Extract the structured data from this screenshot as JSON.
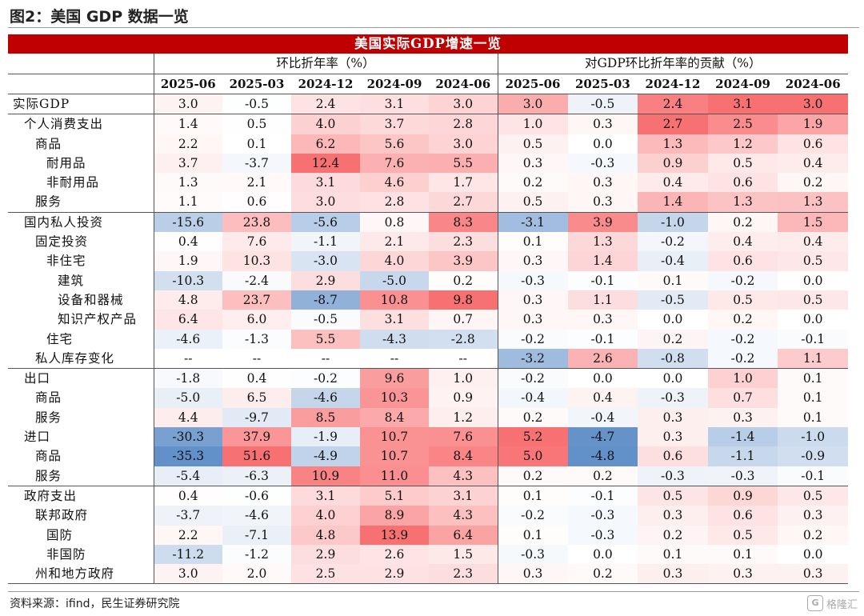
{
  "figure_title": "图2：美国 GDP 数据一览",
  "table": {
    "title": "美国实际GDP增速一览",
    "group_left": "环比折年率（%）",
    "group_right": "对GDP环比折年率的贡献（%）",
    "dates_left": [
      "2025-06",
      "2025-03",
      "2024-12",
      "2024-09",
      "2024-06"
    ],
    "dates_right": [
      "2025-06",
      "2025-03",
      "2024-12",
      "2024-09",
      "2024-06"
    ],
    "rows": [
      {
        "label": "实际GDP",
        "indent": 0,
        "sec": false,
        "growth": [
          "3.0",
          "-0.5",
          "2.4",
          "3.1",
          "3.0"
        ],
        "contrib": [
          "3.0",
          "-0.5",
          "2.4",
          "3.1",
          "3.0"
        ]
      },
      {
        "label": "个人消费支出",
        "indent": 1,
        "sec": true,
        "growth": [
          "1.4",
          "0.5",
          "4.0",
          "3.7",
          "2.8"
        ],
        "contrib": [
          "1.0",
          "0.3",
          "2.7",
          "2.5",
          "1.9"
        ]
      },
      {
        "label": "商品",
        "indent": 2,
        "sec": false,
        "growth": [
          "2.2",
          "0.1",
          "6.2",
          "5.6",
          "3.0"
        ],
        "contrib": [
          "0.5",
          "0.0",
          "1.3",
          "1.2",
          "0.6"
        ]
      },
      {
        "label": "耐用品",
        "indent": 3,
        "sec": false,
        "growth": [
          "3.7",
          "-3.7",
          "12.4",
          "7.6",
          "5.5"
        ],
        "contrib": [
          "0.3",
          "-0.3",
          "0.9",
          "0.5",
          "0.4"
        ]
      },
      {
        "label": "非耐用品",
        "indent": 3,
        "sec": false,
        "growth": [
          "1.3",
          "2.1",
          "3.1",
          "4.6",
          "1.7"
        ],
        "contrib": [
          "0.2",
          "0.3",
          "0.4",
          "0.6",
          "0.2"
        ]
      },
      {
        "label": "服务",
        "indent": 2,
        "sec": false,
        "growth": [
          "1.1",
          "0.6",
          "3.0",
          "2.8",
          "2.7"
        ],
        "contrib": [
          "0.5",
          "0.3",
          "1.4",
          "1.3",
          "1.3"
        ]
      },
      {
        "label": "国内私人投资",
        "indent": 1,
        "sec": true,
        "growth": [
          "-15.6",
          "23.8",
          "-5.6",
          "0.8",
          "8.3"
        ],
        "contrib": [
          "-3.1",
          "3.9",
          "-1.0",
          "0.2",
          "1.5"
        ]
      },
      {
        "label": "固定投资",
        "indent": 2,
        "sec": false,
        "growth": [
          "0.4",
          "7.6",
          "-1.1",
          "2.1",
          "2.3"
        ],
        "contrib": [
          "0.1",
          "1.3",
          "-0.2",
          "0.4",
          "0.4"
        ]
      },
      {
        "label": "非住宅",
        "indent": 3,
        "sec": false,
        "growth": [
          "1.9",
          "10.3",
          "-3.0",
          "4.0",
          "3.9"
        ],
        "contrib": [
          "0.3",
          "1.4",
          "-0.4",
          "0.6",
          "0.5"
        ]
      },
      {
        "label": "建筑",
        "indent": 4,
        "sec": false,
        "growth": [
          "-10.3",
          "-2.4",
          "2.9",
          "-5.0",
          "0.2"
        ],
        "contrib": [
          "-0.3",
          "-0.1",
          "0.1",
          "-0.2",
          "0.0"
        ]
      },
      {
        "label": "设备和器械",
        "indent": 4,
        "sec": false,
        "growth": [
          "4.8",
          "23.7",
          "-8.7",
          "10.8",
          "9.8"
        ],
        "contrib": [
          "0.3",
          "1.1",
          "-0.5",
          "0.5",
          "0.5"
        ]
      },
      {
        "label": "知识产权产品",
        "indent": 4,
        "sec": false,
        "growth": [
          "6.4",
          "6.0",
          "-0.5",
          "3.1",
          "0.7"
        ],
        "contrib": [
          "0.3",
          "0.3",
          "0.0",
          "0.2",
          "0.0"
        ]
      },
      {
        "label": "住宅",
        "indent": 3,
        "sec": false,
        "growth": [
          "-4.6",
          "-1.3",
          "5.5",
          "-4.3",
          "-2.8"
        ],
        "contrib": [
          "-0.2",
          "-0.1",
          "0.2",
          "-0.2",
          "-0.1"
        ]
      },
      {
        "label": "私人库存变化",
        "indent": 2,
        "sec": false,
        "growth": [
          "--",
          "--",
          "--",
          "--",
          "--"
        ],
        "contrib": [
          "-3.2",
          "2.6",
          "-0.8",
          "-0.2",
          "1.1"
        ]
      },
      {
        "label": "出口",
        "indent": 1,
        "sec": true,
        "growth": [
          "-1.8",
          "0.4",
          "-0.2",
          "9.6",
          "1.0"
        ],
        "contrib": [
          "-0.2",
          "0.0",
          "0.0",
          "1.0",
          "0.1"
        ]
      },
      {
        "label": "商品",
        "indent": 2,
        "sec": false,
        "growth": [
          "-5.0",
          "6.5",
          "-4.6",
          "10.3",
          "0.9"
        ],
        "contrib": [
          "-0.4",
          "0.4",
          "-0.3",
          "0.7",
          "0.1"
        ]
      },
      {
        "label": "服务",
        "indent": 2,
        "sec": false,
        "growth": [
          "4.4",
          "-9.7",
          "8.5",
          "8.4",
          "1.2"
        ],
        "contrib": [
          "0.2",
          "-0.4",
          "0.3",
          "0.3",
          "0.1"
        ]
      },
      {
        "label": "进口",
        "indent": 1,
        "sec": false,
        "growth": [
          "-30.3",
          "37.9",
          "-1.9",
          "10.7",
          "7.6"
        ],
        "contrib": [
          "5.2",
          "-4.7",
          "0.3",
          "-1.4",
          "-1.0"
        ]
      },
      {
        "label": "商品",
        "indent": 2,
        "sec": false,
        "growth": [
          "-35.3",
          "51.6",
          "-4.9",
          "10.7",
          "8.4"
        ],
        "contrib": [
          "5.0",
          "-4.8",
          "0.6",
          "-1.1",
          "-0.9"
        ]
      },
      {
        "label": "服务",
        "indent": 2,
        "sec": false,
        "growth": [
          "-5.4",
          "-6.3",
          "10.9",
          "11.0",
          "4.3"
        ],
        "contrib": [
          "0.2",
          "0.2",
          "-0.3",
          "-0.3",
          "-0.1"
        ]
      },
      {
        "label": "政府支出",
        "indent": 1,
        "sec": true,
        "growth": [
          "0.4",
          "-0.6",
          "3.1",
          "5.1",
          "3.1"
        ],
        "contrib": [
          "0.1",
          "-0.1",
          "0.5",
          "0.9",
          "0.5"
        ]
      },
      {
        "label": "联邦政府",
        "indent": 2,
        "sec": false,
        "growth": [
          "-3.7",
          "-4.6",
          "4.0",
          "8.9",
          "4.3"
        ],
        "contrib": [
          "-0.2",
          "-0.3",
          "0.3",
          "0.6",
          "0.3"
        ]
      },
      {
        "label": "国防",
        "indent": 3,
        "sec": false,
        "growth": [
          "2.2",
          "-7.1",
          "4.8",
          "13.9",
          "6.4"
        ],
        "contrib": [
          "0.1",
          "-0.3",
          "0.2",
          "0.5",
          "0.2"
        ]
      },
      {
        "label": "非国防",
        "indent": 3,
        "sec": false,
        "growth": [
          "-11.2",
          "-1.2",
          "2.9",
          "2.6",
          "1.5"
        ],
        "contrib": [
          "-0.3",
          "0.0",
          "0.1",
          "0.1",
          "0.0"
        ]
      },
      {
        "label": "州和地方政府",
        "indent": 2,
        "sec": false,
        "growth": [
          "3.0",
          "2.0",
          "2.5",
          "2.9",
          "2.3"
        ],
        "contrib": [
          "0.3",
          "0.2",
          "0.3",
          "0.3",
          "0.3"
        ]
      }
    ]
  },
  "source": "资料来源：ifind，民生证券研究院",
  "watermark": "格隆汇",
  "colors": {
    "banner": "#c00000",
    "positive_max": "#f8696b",
    "negative_max": "#5a8ac6",
    "neutral": "#ffffff"
  }
}
